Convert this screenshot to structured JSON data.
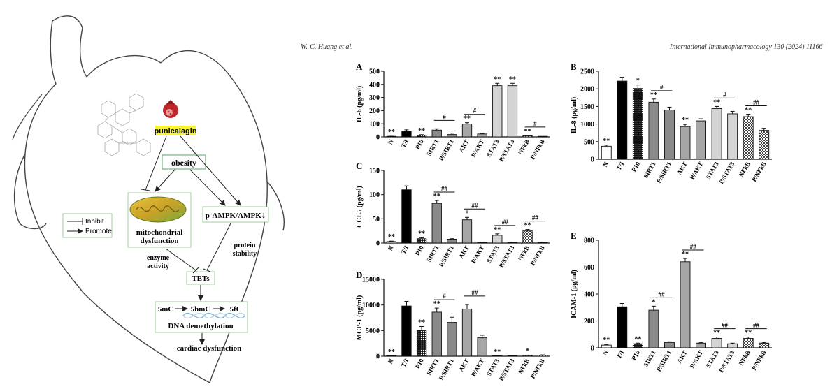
{
  "header": {
    "author": "W.-C. Huang et al.",
    "journal": "International Immunopharmacology 130 (2024) 11166"
  },
  "diagram": {
    "compound": "punicalagin",
    "nodes": {
      "obesity": "obesity",
      "mito_line1": "mitochondrial",
      "mito_line2": "dysfunction",
      "ampk": "p-AMPK/AMPK",
      "ampk_arrow": "↓",
      "tets": "TETs",
      "m5c": "5mC",
      "m5hmc": "5hmC",
      "m5fc": "5fC",
      "dna": "DNA demethylation",
      "cardiac": "cardiac dysfunction",
      "enzyme1": "enzyme",
      "enzyme2": "activity",
      "protein1": "protein",
      "protein2": "stability"
    },
    "legend": {
      "inhibit": "Inhibit",
      "promote": "Promote"
    }
  },
  "chart_data": [
    {
      "panel": "A",
      "type": "bar",
      "ylabel": "IL-6 (pg/ml)",
      "ylim": [
        0,
        500
      ],
      "yticks": [
        0,
        100,
        200,
        300,
        400,
        500
      ],
      "categories": [
        "N",
        "T/I",
        "P10",
        "SIRT1",
        "P/SIRT1",
        "AKT",
        "P/AKT",
        "STAT3",
        "P/STAT3",
        "NFkB",
        "P/NFkB"
      ],
      "values": [
        3,
        42,
        12,
        52,
        18,
        98,
        22,
        390,
        390,
        8,
        2
      ],
      "errors": [
        2,
        12,
        5,
        10,
        10,
        10,
        5,
        18,
        18,
        3,
        1
      ],
      "annotations": [
        "**",
        "",
        "**",
        "",
        "",
        "**",
        "",
        "**",
        "**",
        "**",
        ""
      ],
      "brackets": [
        {
          "from": 3,
          "to": 4,
          "label": "#"
        },
        {
          "from": 5,
          "to": 6,
          "label": "#"
        },
        {
          "from": 9,
          "to": 10,
          "label": "#"
        }
      ]
    },
    {
      "panel": "B",
      "type": "bar",
      "ylabel": "IL-8 (pg/ml)",
      "ylim": [
        0,
        2500
      ],
      "yticks": [
        0,
        500,
        1000,
        1500,
        2000,
        2500
      ],
      "categories": [
        "N",
        "T/I",
        "P10",
        "SIRT1",
        "P/SIRT1",
        "AKT",
        "P/AKT",
        "STAT3",
        "P/STAT3",
        "NFkB",
        "P/NFkB"
      ],
      "values": [
        370,
        2220,
        2010,
        1620,
        1400,
        930,
        1090,
        1440,
        1290,
        1210,
        820
      ],
      "errors": [
        30,
        110,
        100,
        90,
        80,
        60,
        60,
        60,
        70,
        70,
        60
      ],
      "annotations": [
        "**",
        "",
        "*",
        "**",
        "",
        "**",
        "",
        "**",
        "",
        "**",
        ""
      ],
      "brackets": [
        {
          "from": 3,
          "to": 4,
          "label": "#"
        },
        {
          "from": 7,
          "to": 8,
          "label": "#"
        },
        {
          "from": 9,
          "to": 10,
          "label": "##"
        }
      ]
    },
    {
      "panel": "C",
      "type": "bar",
      "ylabel": "CCL5 (pg/ml)",
      "ylim": [
        0,
        150
      ],
      "yticks": [
        0,
        50,
        100,
        150
      ],
      "categories": [
        "N",
        "T/I",
        "P10",
        "SIRT1",
        "P/SIRT1",
        "AKT",
        "P/AKT",
        "STAT3",
        "P/STAT3",
        "NFkB",
        "P/NFkB"
      ],
      "values": [
        3,
        110,
        9,
        82,
        8,
        48,
        1,
        16,
        1,
        25,
        1
      ],
      "errors": [
        1,
        8,
        2,
        6,
        1,
        5,
        0.5,
        3,
        0.5,
        3,
        0.5
      ],
      "annotations": [
        "**",
        "",
        "**",
        "**",
        "",
        "*",
        "",
        "**",
        "",
        "**",
        ""
      ],
      "brackets": [
        {
          "from": 3,
          "to": 4,
          "label": "##"
        },
        {
          "from": 5,
          "to": 6,
          "label": "##"
        },
        {
          "from": 7,
          "to": 8,
          "label": "##"
        },
        {
          "from": 9,
          "to": 10,
          "label": "##"
        }
      ]
    },
    {
      "panel": "D",
      "type": "bar",
      "ylabel": "MCP-1 (pg/ml)",
      "ylim": [
        0,
        15000
      ],
      "yticks": [
        0,
        5000,
        10000,
        15000
      ],
      "categories": [
        "N",
        "T/I",
        "P10",
        "SIRT1",
        "P/SIRT1",
        "AKT",
        "P/AKT",
        "STAT3",
        "P/STAT3",
        "NFkB",
        "P/NFkB"
      ],
      "values": [
        20,
        9800,
        5000,
        8600,
        6600,
        9200,
        3600,
        20,
        20,
        150,
        200
      ],
      "errors": [
        10,
        900,
        800,
        800,
        1000,
        900,
        500,
        10,
        10,
        60,
        60
      ],
      "annotations": [
        "**",
        "",
        "**",
        "**",
        "",
        "",
        "",
        "**",
        "",
        "*",
        ""
      ],
      "brackets": [
        {
          "from": 3,
          "to": 4,
          "label": "#"
        },
        {
          "from": 5,
          "to": 6,
          "label": "##"
        }
      ]
    },
    {
      "panel": "E",
      "type": "bar",
      "ylabel": "ICAM-1 (pg/ml)",
      "ylim": [
        0,
        800
      ],
      "yticks": [
        0,
        200,
        400,
        600,
        800
      ],
      "categories": [
        "N",
        "T/I",
        "P10",
        "SIRT1",
        "P/SIRT1",
        "AKT",
        "P/AKT",
        "STAT3",
        "P/STAT3",
        "NFkB",
        "P/NFkB"
      ],
      "values": [
        20,
        305,
        30,
        280,
        40,
        640,
        35,
        70,
        30,
        70,
        35
      ],
      "errors": [
        5,
        25,
        5,
        30,
        5,
        25,
        5,
        10,
        5,
        10,
        5
      ],
      "annotations": [
        "**",
        "",
        "**",
        "*",
        "",
        "**",
        "",
        "**",
        "",
        "**",
        ""
      ],
      "brackets": [
        {
          "from": 3,
          "to": 4,
          "label": "##"
        },
        {
          "from": 5,
          "to": 6,
          "label": "##"
        },
        {
          "from": 7,
          "to": 8,
          "label": "##"
        },
        {
          "from": 9,
          "to": 10,
          "label": "##"
        }
      ]
    }
  ]
}
